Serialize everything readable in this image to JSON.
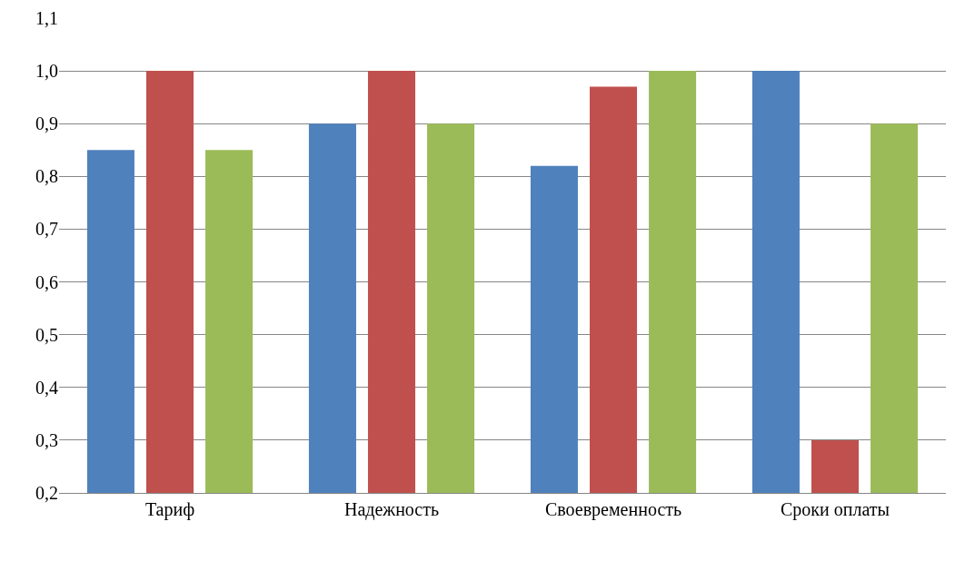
{
  "chart_data": {
    "type": "bar",
    "categories": [
      "Тариф",
      "Надежность",
      "Своевременность",
      "Сроки оплаты"
    ],
    "series": [
      {
        "color": "#4f81bd",
        "values": [
          0.85,
          0.9,
          0.82,
          1.0
        ]
      },
      {
        "color": "#c0504d",
        "values": [
          1.0,
          1.0,
          0.97,
          0.3
        ]
      },
      {
        "color": "#9bbb59",
        "values": [
          0.85,
          0.9,
          1.0,
          0.9
        ]
      }
    ],
    "ylim": [
      0.2,
      1.1
    ],
    "yticks": [
      {
        "value": 0.2,
        "label": "0,2"
      },
      {
        "value": 0.3,
        "label": "0,3"
      },
      {
        "value": 0.4,
        "label": "0,4"
      },
      {
        "value": 0.5,
        "label": "0,5"
      },
      {
        "value": 0.6,
        "label": "0,6"
      },
      {
        "value": 0.7,
        "label": "0,7"
      },
      {
        "value": 0.8,
        "label": "0,8"
      },
      {
        "value": 0.9,
        "label": "0,9"
      },
      {
        "value": 1.0,
        "label": "1,0"
      },
      {
        "value": 1.1,
        "label": "1,1"
      }
    ],
    "grid": "y"
  }
}
